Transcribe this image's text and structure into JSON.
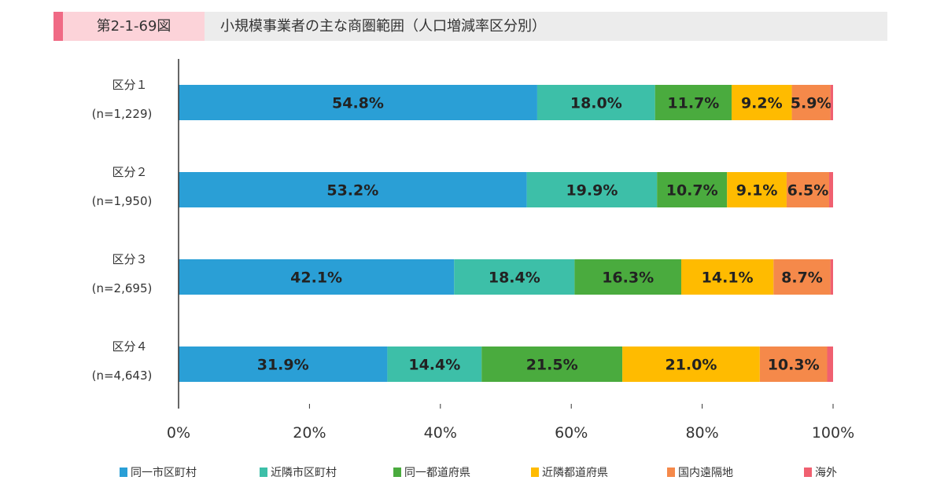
{
  "header": {
    "figure_number": "第2-1-69図",
    "title": "小規模事業者の主な商圏範囲（人口増減率区分別）"
  },
  "chart_data": {
    "type": "bar",
    "orientation": "horizontal",
    "stacked": true,
    "title": "小規模事業者の主な商圏範囲（人口増減率区分別）",
    "categories": [
      [
        "区分１",
        "(n=1,229)"
      ],
      [
        "区分２",
        "(n=1,950)"
      ],
      [
        "区分３",
        "(n=2,695)"
      ],
      [
        "区分４",
        "(n=4,643)"
      ]
    ],
    "xlim": [
      0,
      100
    ],
    "xticks": [
      "0%",
      "20%",
      "40%",
      "60%",
      "80%",
      "100%"
    ],
    "legend_position": "bottom",
    "series": [
      {
        "name": "同一市区町村",
        "color": "#2a9fd6",
        "values": [
          54.8,
          53.2,
          42.1,
          31.9
        ]
      },
      {
        "name": "近隣市区町村",
        "color": "#3dbfa8",
        "values": [
          18.0,
          19.9,
          18.4,
          14.4
        ]
      },
      {
        "name": "同一都道府県",
        "color": "#4aab3e",
        "values": [
          11.7,
          10.7,
          16.3,
          21.5
        ]
      },
      {
        "name": "近隣都道府県",
        "color": "#ffbb00",
        "values": [
          9.2,
          9.1,
          14.1,
          21.0
        ]
      },
      {
        "name": "国内遠隔地",
        "color": "#f5894a",
        "values": [
          5.9,
          6.5,
          8.7,
          10.3
        ]
      },
      {
        "name": "海外",
        "color": "#f06070",
        "values": [
          0.4,
          0.6,
          0.4,
          0.9
        ],
        "labeled": false
      }
    ]
  }
}
